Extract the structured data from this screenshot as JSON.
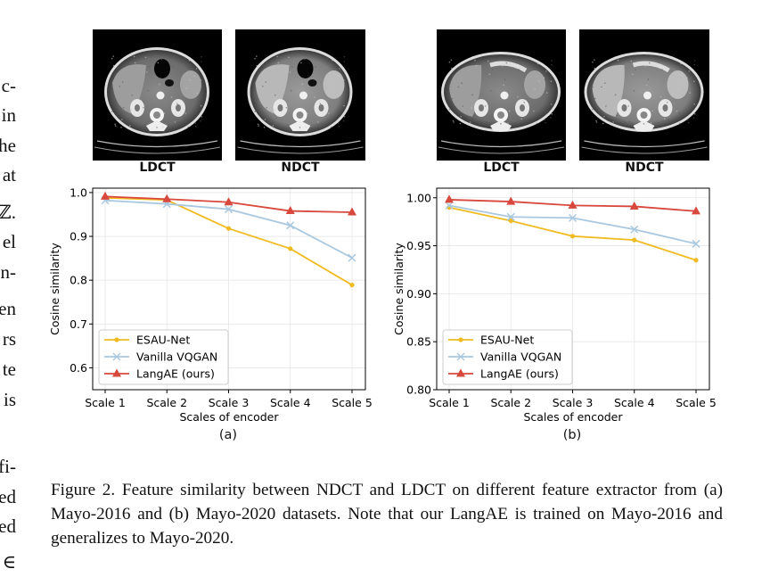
{
  "left_margin_fragments": [
    "c-",
    "in",
    "he",
    "at",
    "ℤ.",
    "el",
    "n-",
    "en",
    "rs",
    "te",
    "is",
    "",
    "fi-",
    "ed",
    "ed",
    "∈"
  ],
  "images": {
    "a": {
      "left_label": "LDCT",
      "right_label": "NDCT"
    },
    "b": {
      "left_label": "LDCT",
      "right_label": "NDCT"
    }
  },
  "panel_labels": {
    "a": "(a)",
    "b": "(b)"
  },
  "caption": "Figure 2.  Feature similarity between NDCT and LDCT on different feature extractor from (a) Mayo-2016 and (b) Mayo-2020 datasets. Note that our LangAE is trained on Mayo-2016 and generalizes to Mayo-2020.",
  "colors": {
    "esau": "#f0bb22",
    "vqgan": "#a9c8e0",
    "langae": "#d8483c"
  },
  "chart_data": [
    {
      "type": "line",
      "categories": [
        "Scale 1",
        "Scale 2",
        "Scale 3",
        "Scale 4",
        "Scale 5"
      ],
      "xlabel": "Scales of encoder",
      "ylabel": "Cosine similarity",
      "ylim": [
        0.55,
        1.01
      ],
      "yticks": [
        0.6,
        0.7,
        0.8,
        0.9,
        1.0
      ],
      "ytick_labels": [
        "0.6",
        "0.7",
        "0.8",
        "0.9",
        "1.0"
      ],
      "grid": true,
      "legend": "lower-left",
      "series": [
        {
          "name": "ESAU-Net",
          "marker": "dot",
          "values": [
            0.988,
            0.983,
            0.918,
            0.872,
            0.789
          ]
        },
        {
          "name": "Vanilla VQGAN",
          "marker": "x",
          "values": [
            0.982,
            0.974,
            0.962,
            0.925,
            0.851
          ]
        },
        {
          "name": "LangAE (ours)",
          "marker": "triangle",
          "values": [
            0.991,
            0.985,
            0.978,
            0.958,
            0.955
          ]
        }
      ]
    },
    {
      "type": "line",
      "categories": [
        "Scale 1",
        "Scale 2",
        "Scale 3",
        "Scale 4",
        "Scale 5"
      ],
      "xlabel": "Scales of encoder",
      "ylabel": "Cosine similarity",
      "ylim": [
        0.8,
        1.01
      ],
      "yticks": [
        0.8,
        0.85,
        0.9,
        0.95,
        1.0
      ],
      "ytick_labels": [
        "0.80",
        "0.85",
        "0.90",
        "0.95",
        "1.00"
      ],
      "grid": true,
      "legend": "lower-left",
      "series": [
        {
          "name": "ESAU-Net",
          "marker": "dot",
          "values": [
            0.99,
            0.976,
            0.96,
            0.956,
            0.935
          ]
        },
        {
          "name": "Vanilla VQGAN",
          "marker": "x",
          "values": [
            0.992,
            0.98,
            0.979,
            0.967,
            0.952
          ]
        },
        {
          "name": "LangAE (ours)",
          "marker": "triangle",
          "values": [
            0.998,
            0.996,
            0.992,
            0.991,
            0.986
          ]
        }
      ]
    }
  ]
}
